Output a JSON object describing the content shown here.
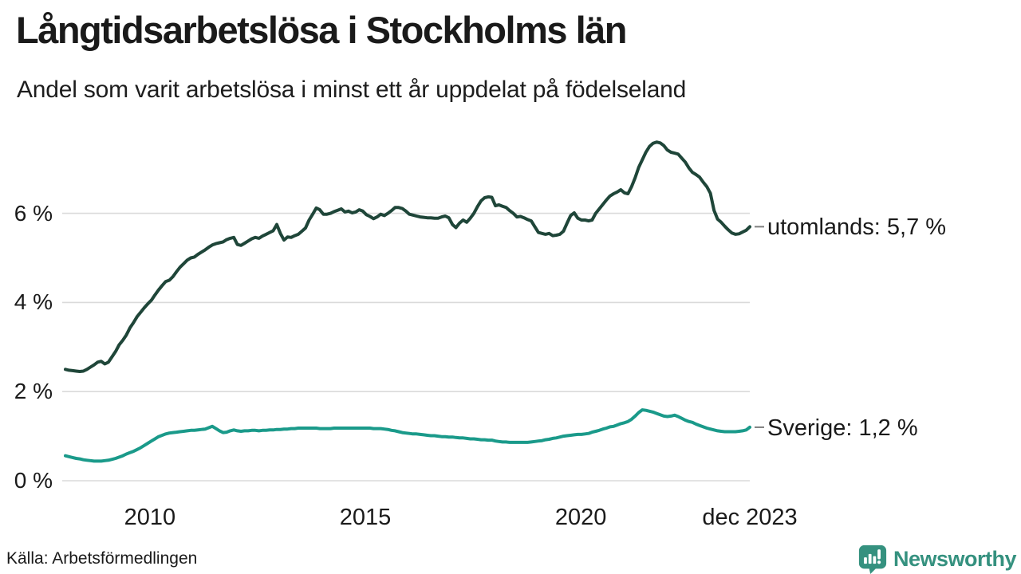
{
  "header": {
    "title": "Långtidsarbetslösa i Stockholms län",
    "subtitle": "Andel som varit arbetslösa i minst ett år uppdelat på födelseland"
  },
  "footer": {
    "source": "Källa: Arbetsförmedlingen",
    "brand": "Newsworthy"
  },
  "colors": {
    "utomlands_line": "#1f4639",
    "sverige_line": "#1a9a8a",
    "brand_teal": "#35917f",
    "grid": "#dadada",
    "connector": "#7f7f7f",
    "text": "#1a1a1a"
  },
  "chart_data": {
    "type": "line",
    "title": "Långtidsarbetslösa i Stockholms län",
    "subtitle": "Andel som varit arbetslösa i minst ett år uppdelat på födelseland",
    "unit": "%",
    "x_unit": "month",
    "x_start": "2008-01",
    "x_end": "2023-12",
    "xlim_years": [
      2008.04,
      2023.92
    ],
    "ylim": [
      0,
      8
    ],
    "grid": "horizontal",
    "legend_position": "end-of-line",
    "yticks": [
      {
        "label": "0 %",
        "value": 0
      },
      {
        "label": "2 %",
        "value": 2
      },
      {
        "label": "4 %",
        "value": 4
      },
      {
        "label": "6 %",
        "value": 6
      }
    ],
    "xticks": [
      {
        "label": "2010",
        "year": 2010.0
      },
      {
        "label": "2015",
        "year": 2015.0
      },
      {
        "label": "2020",
        "year": 2020.0
      },
      {
        "label": "dec 2023",
        "year": 2023.92
      }
    ],
    "series": [
      {
        "name": "utomlands",
        "end_label": "utomlands: 5,7 %",
        "end_value_text": "5,7 %",
        "color": "#1f4639",
        "values": [
          2.5,
          2.48,
          2.47,
          2.46,
          2.45,
          2.46,
          2.5,
          2.55,
          2.6,
          2.66,
          2.68,
          2.62,
          2.66,
          2.78,
          2.9,
          3.05,
          3.15,
          3.27,
          3.43,
          3.55,
          3.68,
          3.78,
          3.88,
          3.97,
          4.05,
          4.17,
          4.28,
          4.38,
          4.47,
          4.5,
          4.58,
          4.69,
          4.79,
          4.87,
          4.95,
          5.0,
          5.02,
          5.08,
          5.13,
          5.18,
          5.24,
          5.29,
          5.32,
          5.34,
          5.36,
          5.41,
          5.44,
          5.46,
          5.3,
          5.28,
          5.33,
          5.38,
          5.43,
          5.46,
          5.44,
          5.49,
          5.53,
          5.57,
          5.61,
          5.75,
          5.55,
          5.4,
          5.47,
          5.46,
          5.5,
          5.53,
          5.6,
          5.67,
          5.85,
          5.98,
          6.12,
          6.08,
          5.98,
          5.98,
          6.0,
          6.04,
          6.07,
          6.1,
          6.03,
          6.05,
          6.01,
          6.03,
          6.08,
          6.05,
          5.97,
          5.93,
          5.88,
          5.92,
          5.98,
          5.95,
          6.0,
          6.06,
          6.13,
          6.13,
          6.11,
          6.05,
          5.98,
          5.96,
          5.94,
          5.92,
          5.91,
          5.9,
          5.9,
          5.89,
          5.89,
          5.92,
          5.94,
          5.9,
          5.75,
          5.68,
          5.78,
          5.85,
          5.8,
          5.89,
          6.0,
          6.15,
          6.28,
          6.35,
          6.37,
          6.36,
          6.17,
          6.19,
          6.16,
          6.13,
          6.06,
          6.0,
          5.92,
          5.93,
          5.9,
          5.86,
          5.83,
          5.7,
          5.57,
          5.55,
          5.53,
          5.55,
          5.5,
          5.51,
          5.53,
          5.6,
          5.78,
          5.95,
          6.01,
          5.89,
          5.85,
          5.85,
          5.83,
          5.85,
          6.0,
          6.1,
          6.2,
          6.3,
          6.39,
          6.44,
          6.48,
          6.53,
          6.46,
          6.44,
          6.6,
          6.8,
          7.03,
          7.2,
          7.37,
          7.5,
          7.57,
          7.6,
          7.58,
          7.52,
          7.42,
          7.37,
          7.35,
          7.33,
          7.24,
          7.15,
          7.02,
          6.92,
          6.87,
          6.81,
          6.7,
          6.6,
          6.45,
          6.07,
          5.87,
          5.8,
          5.71,
          5.63,
          5.56,
          5.53,
          5.54,
          5.58,
          5.62,
          5.7
        ]
      },
      {
        "name": "Sverige",
        "end_label": "Sverige: 1,2 %",
        "end_value_text": "1,2 %",
        "color": "#1a9a8a",
        "values": [
          0.56,
          0.54,
          0.52,
          0.5,
          0.49,
          0.47,
          0.46,
          0.45,
          0.44,
          0.44,
          0.44,
          0.45,
          0.46,
          0.48,
          0.5,
          0.53,
          0.56,
          0.6,
          0.63,
          0.66,
          0.7,
          0.74,
          0.79,
          0.84,
          0.89,
          0.94,
          0.99,
          1.02,
          1.05,
          1.07,
          1.08,
          1.09,
          1.1,
          1.11,
          1.12,
          1.13,
          1.13,
          1.14,
          1.15,
          1.16,
          1.19,
          1.22,
          1.17,
          1.12,
          1.08,
          1.09,
          1.12,
          1.14,
          1.12,
          1.11,
          1.12,
          1.12,
          1.13,
          1.13,
          1.12,
          1.13,
          1.13,
          1.14,
          1.14,
          1.15,
          1.15,
          1.16,
          1.16,
          1.17,
          1.17,
          1.18,
          1.18,
          1.18,
          1.18,
          1.18,
          1.18,
          1.17,
          1.17,
          1.17,
          1.17,
          1.18,
          1.18,
          1.18,
          1.18,
          1.18,
          1.18,
          1.18,
          1.18,
          1.18,
          1.18,
          1.18,
          1.17,
          1.17,
          1.17,
          1.16,
          1.15,
          1.13,
          1.12,
          1.1,
          1.08,
          1.07,
          1.06,
          1.05,
          1.05,
          1.04,
          1.03,
          1.02,
          1.01,
          1.01,
          1.0,
          0.99,
          0.99,
          0.98,
          0.98,
          0.97,
          0.96,
          0.96,
          0.95,
          0.94,
          0.94,
          0.93,
          0.92,
          0.92,
          0.91,
          0.91,
          0.89,
          0.88,
          0.87,
          0.87,
          0.86,
          0.86,
          0.86,
          0.86,
          0.86,
          0.86,
          0.87,
          0.88,
          0.89,
          0.9,
          0.92,
          0.93,
          0.95,
          0.96,
          0.98,
          1.0,
          1.01,
          1.02,
          1.03,
          1.04,
          1.04,
          1.05,
          1.06,
          1.09,
          1.11,
          1.13,
          1.16,
          1.18,
          1.21,
          1.22,
          1.25,
          1.28,
          1.3,
          1.33,
          1.38,
          1.45,
          1.53,
          1.59,
          1.58,
          1.56,
          1.54,
          1.51,
          1.48,
          1.45,
          1.44,
          1.45,
          1.47,
          1.44,
          1.4,
          1.36,
          1.33,
          1.31,
          1.27,
          1.24,
          1.21,
          1.18,
          1.16,
          1.14,
          1.12,
          1.11,
          1.1,
          1.1,
          1.1,
          1.1,
          1.11,
          1.12,
          1.14,
          1.2
        ]
      }
    ]
  }
}
